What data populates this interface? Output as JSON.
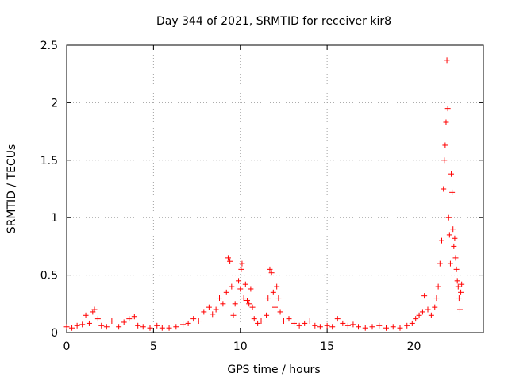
{
  "chart_data": {
    "type": "scatter",
    "title": "Day 344 of 2021, SRMTID for receiver kir8",
    "xlabel": "GPS time / hours",
    "ylabel": "SRMTID / TECUs",
    "xlim": [
      0,
      24
    ],
    "ylim": [
      0,
      2.5
    ],
    "x_ticks": [
      0,
      5,
      10,
      15,
      20
    ],
    "x_tick_labels": [
      "0",
      "5",
      "10",
      "15",
      "20"
    ],
    "y_ticks": [
      0,
      0.5,
      1,
      1.5,
      2,
      2.5
    ],
    "y_tick_labels": [
      "0",
      "0.5",
      "1",
      "1.5",
      "2",
      "2.5"
    ],
    "grid": true,
    "marker": "+",
    "series": [
      {
        "name": "SRMTID",
        "color": "#ff0000",
        "x": [
          0.0,
          0.3,
          0.6,
          0.9,
          1.1,
          1.3,
          1.5,
          1.6,
          1.8,
          2.0,
          2.3,
          2.6,
          3.0,
          3.3,
          3.6,
          3.9,
          4.1,
          4.4,
          4.8,
          5.2,
          5.5,
          5.9,
          6.3,
          6.7,
          7.0,
          7.3,
          7.6,
          7.9,
          8.2,
          8.4,
          8.6,
          8.8,
          9.0,
          9.2,
          9.3,
          9.4,
          9.5,
          9.6,
          9.7,
          9.9,
          10.0,
          10.05,
          10.1,
          10.2,
          10.3,
          10.4,
          10.5,
          10.6,
          10.7,
          10.8,
          11.0,
          11.2,
          11.5,
          11.6,
          11.7,
          11.8,
          11.9,
          12.0,
          12.1,
          12.2,
          12.3,
          12.5,
          12.8,
          13.1,
          13.4,
          13.7,
          14.0,
          14.3,
          14.6,
          15.0,
          15.3,
          15.6,
          15.9,
          16.2,
          16.5,
          16.8,
          17.2,
          17.6,
          18.0,
          18.4,
          18.8,
          19.2,
          19.6,
          19.9,
          20.1,
          20.3,
          20.5,
          20.6,
          20.8,
          21.0,
          21.2,
          21.3,
          21.4,
          21.5,
          21.6,
          21.7,
          21.75,
          21.8,
          21.85,
          21.9,
          21.95,
          22.0,
          22.05,
          22.1,
          22.15,
          22.2,
          22.25,
          22.3,
          22.35,
          22.4,
          22.45,
          22.5,
          22.55,
          22.6,
          22.65,
          22.7,
          22.75
        ],
        "y": [
          0.05,
          0.04,
          0.06,
          0.07,
          0.15,
          0.08,
          0.18,
          0.2,
          0.12,
          0.06,
          0.05,
          0.1,
          0.05,
          0.09,
          0.12,
          0.14,
          0.06,
          0.05,
          0.04,
          0.06,
          0.04,
          0.04,
          0.05,
          0.07,
          0.08,
          0.12,
          0.1,
          0.18,
          0.22,
          0.16,
          0.2,
          0.3,
          0.25,
          0.35,
          0.65,
          0.62,
          0.4,
          0.15,
          0.25,
          0.45,
          0.38,
          0.55,
          0.6,
          0.3,
          0.42,
          0.28,
          0.25,
          0.38,
          0.22,
          0.12,
          0.08,
          0.1,
          0.15,
          0.3,
          0.55,
          0.52,
          0.35,
          0.22,
          0.4,
          0.3,
          0.18,
          0.1,
          0.12,
          0.08,
          0.06,
          0.08,
          0.1,
          0.06,
          0.05,
          0.06,
          0.05,
          0.12,
          0.08,
          0.06,
          0.07,
          0.05,
          0.04,
          0.05,
          0.06,
          0.04,
          0.05,
          0.04,
          0.06,
          0.08,
          0.12,
          0.15,
          0.18,
          0.32,
          0.2,
          0.15,
          0.22,
          0.3,
          0.4,
          0.6,
          0.8,
          1.25,
          1.5,
          1.63,
          1.83,
          2.37,
          1.95,
          1.0,
          0.85,
          0.6,
          1.38,
          1.22,
          0.9,
          0.75,
          0.82,
          0.65,
          0.55,
          0.45,
          0.4,
          0.3,
          0.2,
          0.35,
          0.42
        ]
      }
    ]
  }
}
